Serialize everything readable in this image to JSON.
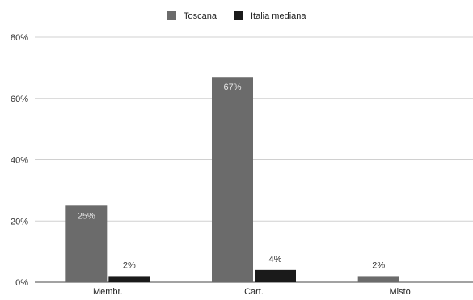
{
  "chart_data": {
    "type": "bar",
    "categories": [
      "Membr.",
      "Cart.",
      "Misto"
    ],
    "series": [
      {
        "name": "Toscana",
        "values": [
          25,
          67,
          2
        ],
        "labels": [
          "25%",
          "67%",
          "2%"
        ],
        "color": "#6b6b6b"
      },
      {
        "name": "Italia mediana",
        "values": [
          2,
          4,
          0
        ],
        "labels": [
          "2%",
          "4%",
          ""
        ],
        "color": "#1a1a1a"
      }
    ],
    "ylim": [
      0,
      80
    ],
    "yticks": [
      {
        "value": 0,
        "label": "0%"
      },
      {
        "value": 20,
        "label": "20%"
      },
      {
        "value": 40,
        "label": "40%"
      },
      {
        "value": 60,
        "label": "60%"
      },
      {
        "value": 80,
        "label": "80%"
      }
    ],
    "grid": true,
    "legend_position": "top-center",
    "label_colors": {
      "inside": "#e8e8e8",
      "outside": "#333333"
    }
  }
}
